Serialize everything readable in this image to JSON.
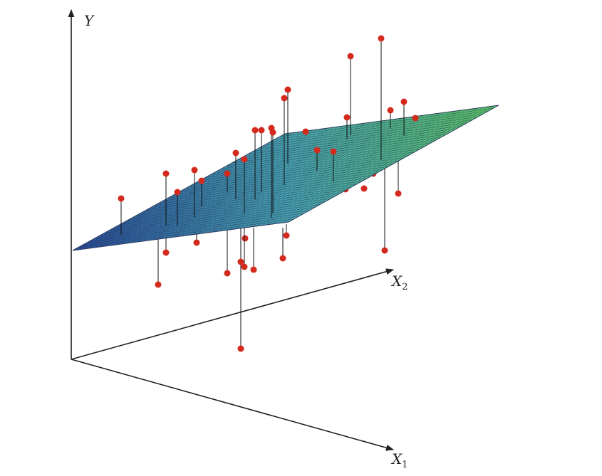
{
  "axes": {
    "y": "Y",
    "x2": {
      "name": "X",
      "subscript": "2"
    },
    "x1": {
      "name": "X",
      "subscript": "1"
    }
  }
}
